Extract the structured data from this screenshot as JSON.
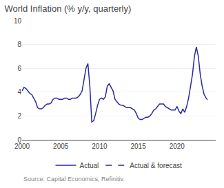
{
  "chart_data": {
    "type": "line",
    "title": "World Inflation (% y/y, quarterly)",
    "annotations": [
      "Source: Capital Economics, Refinitiv."
    ],
    "xlim": [
      2000,
      2025
    ],
    "xticks": [
      2000,
      2005,
      2010,
      2015,
      2020
    ],
    "ylim": [
      0,
      10
    ],
    "yticks": [
      0,
      2,
      4,
      6,
      8,
      10
    ],
    "grid": "y",
    "legend": "bottom",
    "series": [
      {
        "name": "Actual",
        "color": "#2929a3",
        "line_style": "solid",
        "x": [
          2000.0,
          2000.25,
          2000.5,
          2000.75,
          2001.0,
          2001.25,
          2001.5,
          2001.75,
          2002.0,
          2002.25,
          2002.5,
          2002.75,
          2003.0,
          2003.25,
          2003.5,
          2003.75,
          2004.0,
          2004.25,
          2004.5,
          2004.75,
          2005.0,
          2005.25,
          2005.5,
          2005.75,
          2006.0,
          2006.25,
          2006.5,
          2006.75,
          2007.0,
          2007.25,
          2007.5,
          2007.75,
          2008.0,
          2008.25,
          2008.5,
          2008.75,
          2009.0,
          2009.25,
          2009.5,
          2009.75,
          2010.0,
          2010.25,
          2010.5,
          2010.75,
          2011.0,
          2011.25,
          2011.5,
          2011.75,
          2012.0,
          2012.25,
          2012.5,
          2012.75,
          2013.0,
          2013.25,
          2013.5,
          2013.75,
          2014.0,
          2014.25,
          2014.5,
          2014.75,
          2015.0,
          2015.25,
          2015.5,
          2015.75,
          2016.0,
          2016.25,
          2016.5,
          2016.75,
          2017.0,
          2017.25,
          2017.5,
          2017.75,
          2018.0,
          2018.25,
          2018.5,
          2018.75,
          2019.0,
          2019.25,
          2019.5,
          2019.75,
          2020.0,
          2020.25,
          2020.5,
          2020.75,
          2021.0,
          2021.25,
          2021.5,
          2021.75,
          2022.0,
          2022.25,
          2022.5,
          2022.75,
          2023.0,
          2023.25,
          2023.5
        ],
        "values": [
          4.1,
          4.4,
          4.3,
          4.1,
          3.9,
          3.8,
          3.5,
          3.2,
          2.7,
          2.6,
          2.6,
          2.7,
          2.9,
          3.0,
          3.0,
          3.1,
          3.4,
          3.5,
          3.5,
          3.4,
          3.4,
          3.4,
          3.5,
          3.5,
          3.4,
          3.4,
          3.5,
          3.5,
          3.5,
          3.6,
          3.8,
          4.1,
          5.0,
          6.0,
          6.4,
          4.5,
          1.5,
          1.6,
          2.2,
          2.9,
          3.4,
          3.5,
          3.4,
          3.6,
          4.5,
          4.7,
          4.4,
          4.1,
          3.4,
          3.2,
          3.0,
          2.9,
          2.9,
          2.8,
          2.7,
          2.7,
          2.7,
          2.6,
          2.5,
          2.2,
          1.8,
          1.7,
          1.7,
          1.8,
          1.9,
          1.9,
          2.0,
          2.2,
          2.5,
          2.6,
          2.8,
          3.0,
          3.0,
          3.0,
          2.8,
          2.7,
          2.6,
          2.5,
          2.5,
          2.5,
          2.8,
          2.4,
          2.2,
          2.6,
          2.3,
          2.8,
          3.5,
          4.5,
          5.5,
          7.0,
          7.8,
          7.0,
          5.5,
          4.5,
          3.8
        ]
      },
      {
        "name": "Actual & forecast",
        "color": "#2929a3",
        "line_style": "dashed",
        "x": [
          2023.5,
          2023.75,
          2024.0,
          2024.25
        ],
        "values": [
          3.8,
          3.5,
          3.3,
          3.2
        ]
      }
    ]
  }
}
